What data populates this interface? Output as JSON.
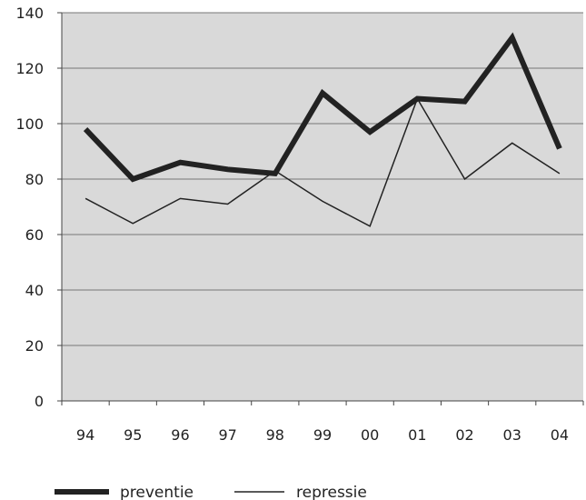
{
  "chart_data": {
    "type": "line",
    "categories": [
      "94",
      "95",
      "96",
      "97",
      "98",
      "99",
      "00",
      "01",
      "02",
      "03",
      "04"
    ],
    "series": [
      {
        "name": "preventie",
        "values": [
          98,
          80,
          86,
          83.5,
          82,
          111,
          97,
          109,
          108,
          131,
          91
        ],
        "color": "#222222"
      },
      {
        "name": "repressie",
        "values": [
          73,
          64,
          73,
          71,
          83,
          72,
          63,
          109,
          80,
          93,
          82
        ],
        "color": "#222222"
      }
    ],
    "yticks": [
      "0",
      "20",
      "40",
      "60",
      "80",
      "100",
      "120",
      "140"
    ],
    "ylim": [
      0,
      140
    ],
    "grid": true,
    "legend": "bottom-left",
    "plot_background": "#d9d9d9",
    "title": "",
    "xlabel": "",
    "ylabel": ""
  }
}
